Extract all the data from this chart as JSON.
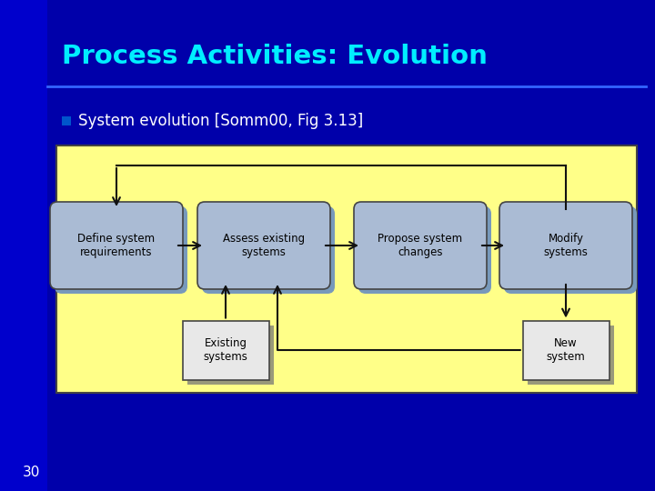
{
  "title": "Process Activities: Evolution",
  "title_color": "#00EEFF",
  "bullet_text": "System evolution [Somm00, Fig 3.13]",
  "bullet_color": "#FFFFFF",
  "slide_bg": "#0000aa",
  "left_bar_color": "#0000cc",
  "slide_number": "30",
  "slide_number_color": "#FFFFFF",
  "diagram_bg": "#FFFF88",
  "diagram_border": "#444444",
  "node_fill": "#aabbd4",
  "node_shadow": "#7799bb",
  "rect_fill": "#e8e8e8",
  "rect_shadow": "#99997a",
  "arrow_color": "#111111",
  "node_text_color": "#000000",
  "title_line_color": "#3366ff",
  "bullet_marker_color": "#0055cc"
}
